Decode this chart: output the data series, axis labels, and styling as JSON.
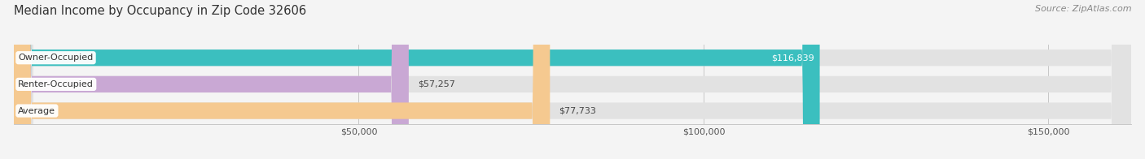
{
  "title": "Median Income by Occupancy in Zip Code 32606",
  "source": "Source: ZipAtlas.com",
  "categories": [
    "Owner-Occupied",
    "Renter-Occupied",
    "Average"
  ],
  "values": [
    116839,
    57257,
    77733
  ],
  "bar_colors": [
    "#3bbfbf",
    "#c9a8d4",
    "#f5c990"
  ],
  "value_labels": [
    "$116,839",
    "$57,257",
    "$77,733"
  ],
  "value_label_inside": [
    true,
    false,
    false
  ],
  "value_label_colors": [
    "white",
    "#444444",
    "#444444"
  ],
  "xlim": [
    0,
    162000
  ],
  "xticks": [
    50000,
    100000,
    150000
  ],
  "xticklabels": [
    "$50,000",
    "$100,000",
    "$150,000"
  ],
  "title_fontsize": 10.5,
  "source_fontsize": 8,
  "tick_fontsize": 8,
  "bar_label_fontsize": 8,
  "value_label_fontsize": 8,
  "background_color": "#f4f4f4",
  "bg_bar_color": "#e2e2e2",
  "bar_height": 0.62,
  "figsize": [
    14.06,
    1.96
  ],
  "dpi": 100
}
